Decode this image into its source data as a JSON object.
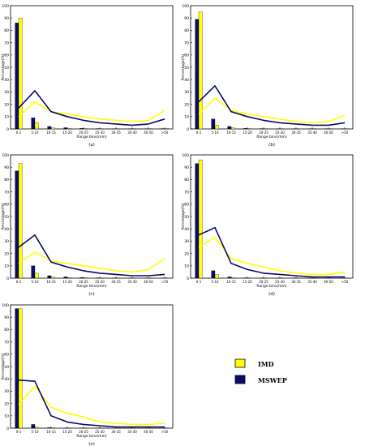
{
  "colors": {
    "imd": "#ffff00",
    "mswep": "#0a0a6e",
    "axis": "#000000"
  },
  "legend": {
    "imd_label": "IMD",
    "mswep_label": "MSWEP"
  },
  "shared": {
    "xlabel": "Range bins(mm)",
    "ylabel": "Percentage(%)",
    "categories": [
      "0-1",
      "5-10",
      "10-15",
      "15-20",
      "20-25",
      "25-30",
      "30-35",
      "35-40",
      "40-50",
      ">50"
    ],
    "yticks": [
      0,
      10,
      20,
      30,
      40,
      50,
      60,
      70,
      80,
      90,
      100
    ],
    "ylim": [
      0,
      100
    ]
  },
  "chart_data": [
    {
      "type": "bar",
      "caption": "(a)",
      "series": [
        {
          "name": "MSWEP",
          "values": [
            86,
            9,
            2,
            1,
            0.5,
            0.3,
            0.2,
            0.2,
            0.2,
            0.3
          ],
          "line": [
            17,
            31,
            14,
            10,
            7,
            5,
            4,
            3,
            4,
            8
          ]
        },
        {
          "name": "IMD",
          "values": [
            90,
            5,
            1,
            0.5,
            0.3,
            0.2,
            0.2,
            0.1,
            0.2,
            0.5
          ],
          "line": [
            10,
            22,
            14,
            12,
            10,
            8,
            7,
            6,
            7,
            15
          ]
        }
      ]
    },
    {
      "type": "bar",
      "caption": "(b)",
      "series": [
        {
          "name": "MSWEP",
          "values": [
            89,
            8,
            2,
            0.5,
            0.3,
            0.2,
            0.2,
            0.1,
            0.1,
            0.2
          ],
          "line": [
            22,
            35,
            14,
            10,
            7,
            5,
            4,
            3,
            3,
            5
          ]
        },
        {
          "name": "IMD",
          "values": [
            95,
            3,
            1,
            0.3,
            0.2,
            0.1,
            0.1,
            0.1,
            0.1,
            0.2
          ],
          "line": [
            12,
            25,
            15,
            12,
            10,
            8,
            6,
            5,
            6,
            11
          ]
        }
      ]
    },
    {
      "type": "bar",
      "caption": "(c)",
      "series": [
        {
          "name": "MSWEP",
          "values": [
            87,
            10,
            2,
            1,
            0.5,
            0.3,
            0.2,
            0.1,
            0.1,
            0.2
          ],
          "line": [
            25,
            35,
            13,
            9,
            6,
            4,
            3,
            2,
            2,
            3
          ]
        },
        {
          "name": "IMD",
          "values": [
            93,
            4,
            1,
            0.5,
            0.3,
            0.2,
            0.1,
            0.1,
            0.1,
            0.2
          ],
          "line": [
            12,
            21,
            14,
            12,
            10,
            8,
            6,
            5,
            7,
            16
          ]
        }
      ]
    },
    {
      "type": "bar",
      "caption": "(d)",
      "series": [
        {
          "name": "MSWEP",
          "values": [
            93,
            6,
            1,
            0.3,
            0.2,
            0.1,
            0.1,
            0.1,
            0.1,
            0.1
          ],
          "line": [
            35,
            41,
            12,
            7,
            4,
            3,
            2,
            1,
            1,
            1
          ]
        },
        {
          "name": "IMD",
          "values": [
            96,
            3,
            0.5,
            0.2,
            0.1,
            0.1,
            0.1,
            0.1,
            0.1,
            0.1
          ],
          "line": [
            25,
            33,
            16,
            12,
            9,
            6,
            4,
            3,
            3,
            5
          ]
        }
      ]
    },
    {
      "type": "bar",
      "caption": "(e)",
      "series": [
        {
          "name": "MSWEP",
          "values": [
            97,
            3,
            0.5,
            0.2,
            0.1,
            0.1,
            0.1,
            0.1,
            0.1,
            0.1
          ],
          "line": [
            39,
            38,
            10,
            5,
            3,
            2,
            1,
            1,
            1,
            1
          ]
        },
        {
          "name": "IMD",
          "values": [
            97,
            1,
            0.5,
            0.2,
            0.1,
            0.1,
            0.1,
            0.1,
            0.1,
            0.1
          ],
          "line": [
            19,
            34,
            17,
            12,
            9,
            5,
            4,
            3,
            3,
            4
          ]
        }
      ]
    }
  ]
}
